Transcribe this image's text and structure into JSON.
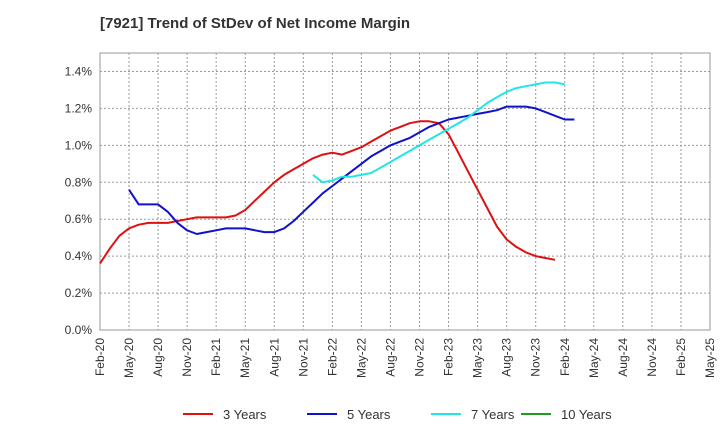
{
  "chart_data": {
    "type": "line",
    "title": "[7921]  Trend of StDev of Net Income Margin",
    "xlabel": "",
    "ylabel": "",
    "x_ticks": [
      "Feb-20",
      "May-20",
      "Aug-20",
      "Nov-20",
      "Feb-21",
      "May-21",
      "Aug-21",
      "Nov-21",
      "Feb-22",
      "May-22",
      "Aug-22",
      "Nov-22",
      "Feb-23",
      "May-23",
      "Aug-23",
      "Nov-23",
      "Feb-24",
      "May-24",
      "Aug-24",
      "Nov-24",
      "Feb-25",
      "May-25"
    ],
    "y_ticks": [
      "0.0%",
      "0.2%",
      "0.4%",
      "0.6%",
      "0.8%",
      "1.0%",
      "1.2%",
      "1.4%"
    ],
    "ylim": [
      0,
      0.015
    ],
    "grid": true,
    "legend_position": "bottom",
    "series": [
      {
        "name": "3 Years",
        "color": "#dd1111",
        "values": [
          0.0036,
          0.0044,
          0.0051,
          0.0055,
          0.0057,
          0.0058,
          0.0058,
          0.0058,
          0.0059,
          0.006,
          0.0061,
          0.0061,
          0.0061,
          0.0061,
          0.0062,
          0.0065,
          0.007,
          0.0075,
          0.008,
          0.0084,
          0.0087,
          0.009,
          0.0093,
          0.0095,
          0.0096,
          0.0095,
          0.0097,
          0.0099,
          0.0102,
          0.0105,
          0.0108,
          0.011,
          0.0112,
          0.0113,
          0.0113,
          0.0112,
          0.0106,
          0.0096,
          0.0086,
          0.0076,
          0.0066,
          0.0056,
          0.0049,
          0.0045,
          0.0042,
          0.004,
          0.0039,
          0.0038
        ]
      },
      {
        "name": "5 Years",
        "color": "#1111cc",
        "values": [
          null,
          null,
          null,
          0.0076,
          0.0068,
          0.0068,
          0.0068,
          0.0064,
          0.0058,
          0.0054,
          0.0052,
          0.0053,
          0.0054,
          0.0055,
          0.0055,
          0.0055,
          0.0054,
          0.0053,
          0.0053,
          0.0055,
          0.0059,
          0.0064,
          0.0069,
          0.0074,
          0.0078,
          0.0082,
          0.0086,
          0.009,
          0.0094,
          0.0097,
          0.01,
          0.0102,
          0.0104,
          0.0107,
          0.011,
          0.0112,
          0.0114,
          0.0115,
          0.0116,
          0.0117,
          0.0118,
          0.0119,
          0.0121,
          0.0121,
          0.0121,
          0.012,
          0.0118,
          0.0116,
          0.0114,
          0.0114
        ]
      },
      {
        "name": "7 Years",
        "color": "#22e5e5",
        "values": [
          null,
          null,
          null,
          null,
          null,
          null,
          null,
          null,
          null,
          null,
          null,
          null,
          null,
          null,
          null,
          null,
          null,
          null,
          null,
          null,
          null,
          null,
          0.0084,
          0.008,
          0.0081,
          0.0083,
          0.0083,
          0.0084,
          0.0085,
          0.0088,
          0.0091,
          0.0094,
          0.0097,
          0.01,
          0.0103,
          0.0106,
          0.0109,
          0.0112,
          0.0115,
          0.0119,
          0.0123,
          0.0126,
          0.0129,
          0.0131,
          0.0132,
          0.0133,
          0.0134,
          0.0134,
          0.0133
        ]
      },
      {
        "name": "10 Years",
        "color": "#229922",
        "values": []
      }
    ]
  }
}
